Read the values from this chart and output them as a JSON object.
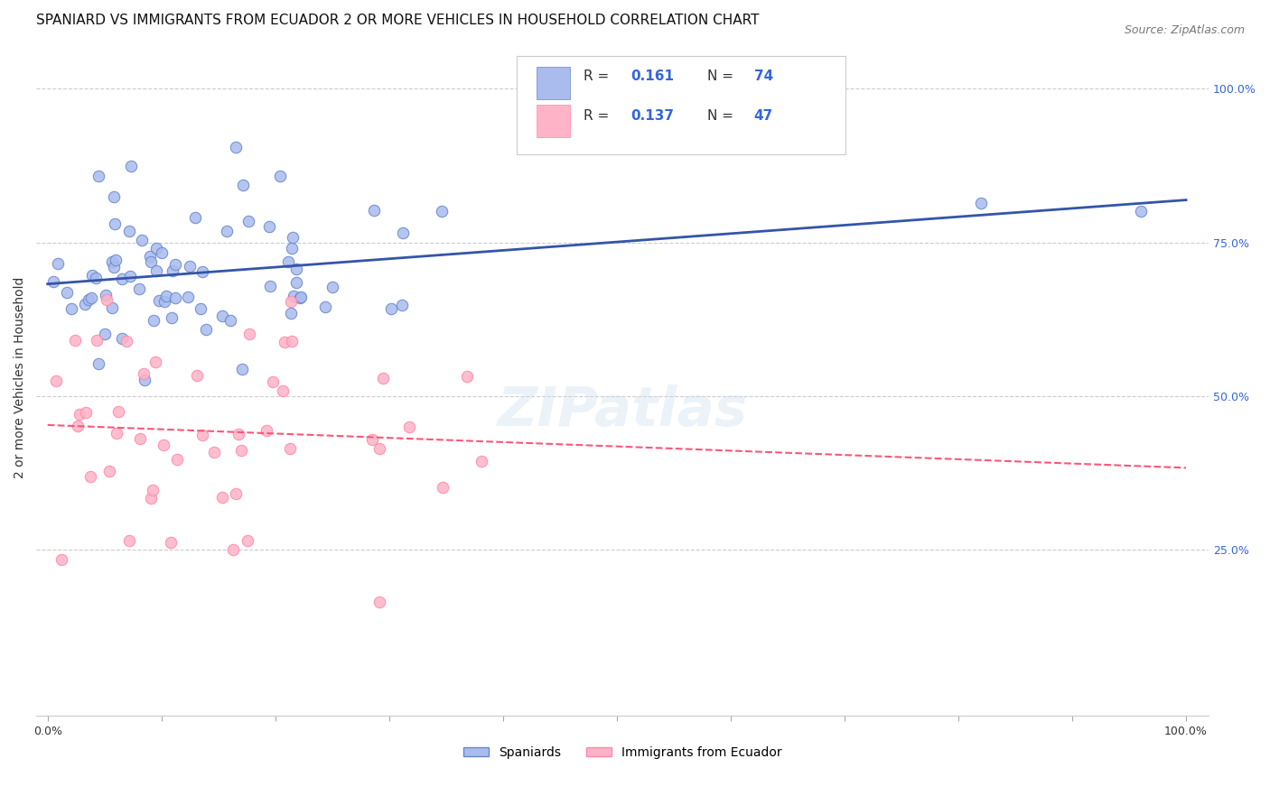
{
  "title": "SPANIARD VS IMMIGRANTS FROM ECUADOR 2 OR MORE VEHICLES IN HOUSEHOLD CORRELATION CHART",
  "source": "Source: ZipAtlas.com",
  "ylabel": "2 or more Vehicles in Household",
  "spaniards_R": 0.161,
  "spaniards_N": 74,
  "ecuador_R": 0.137,
  "ecuador_N": 47,
  "blue_fill": "#AABBEE",
  "blue_edge": "#6688CC",
  "pink_fill": "#FFB3C6",
  "pink_edge": "#FF88AA",
  "blue_line_color": "#3355AA",
  "pink_line_color": "#FF5577",
  "watermark": "ZIPatlas",
  "right_tick_color": "#3366DD",
  "title_fontsize": 11,
  "tick_fontsize": 9,
  "legend_fontsize": 11
}
